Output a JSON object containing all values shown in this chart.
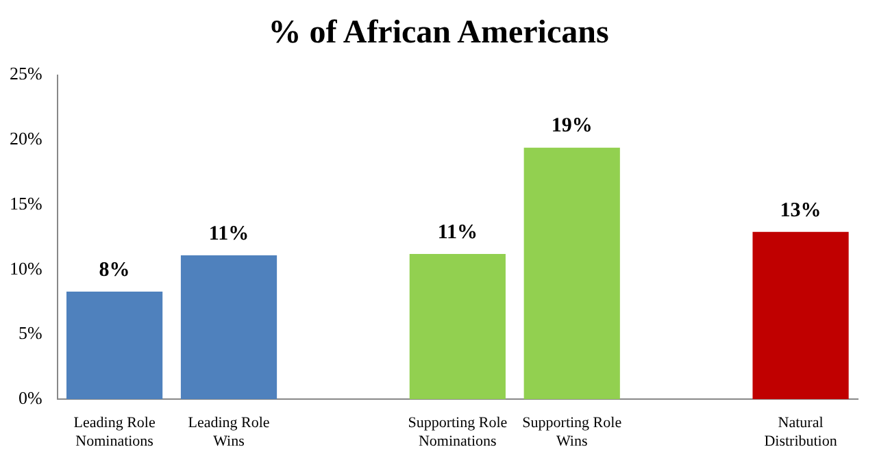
{
  "chart_data": {
    "type": "bar",
    "title": "% of African Americans",
    "categories": [
      "Leading Role Nominations",
      "Leading Role Wins",
      null,
      "Supporting Role Nominations",
      "Supporting Role Wins",
      null,
      "Natural Distribution"
    ],
    "values": [
      8.3,
      11.1,
      null,
      11.2,
      19.4,
      null,
      12.9
    ],
    "colors": [
      "#4f81bd",
      "#4f81bd",
      null,
      "#92d050",
      "#92d050",
      null,
      "#c00000"
    ],
    "value_labels": [
      "8%",
      "11%",
      null,
      "11%",
      "19%",
      null,
      "13%"
    ],
    "ylim": [
      0,
      25
    ],
    "yticks": [
      {
        "value": 0,
        "label": "0%"
      },
      {
        "value": 5,
        "label": "5%"
      },
      {
        "value": 10,
        "label": "10%"
      },
      {
        "value": 15,
        "label": "15%"
      },
      {
        "value": 20,
        "label": "20%"
      },
      {
        "value": 25,
        "label": "25%"
      }
    ],
    "grid": false,
    "legend": false
  }
}
